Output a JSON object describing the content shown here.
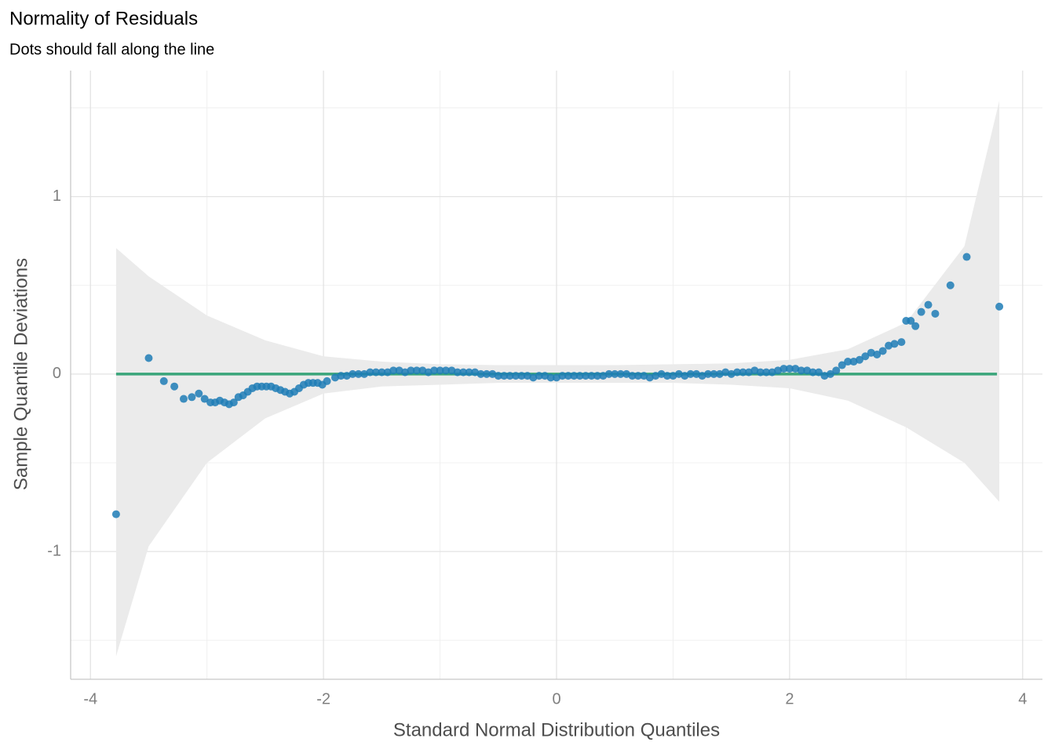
{
  "chart_data": {
    "type": "scatter",
    "title": "Normality of Residuals",
    "subtitle": "Dots should fall along the line",
    "x_label": "Standard Normal Distribution Quantiles",
    "y_label": "Sample Quantile Deviations",
    "xlim": [
      -4.17,
      4.17
    ],
    "ylim": [
      -1.72,
      1.71
    ],
    "xticks": [
      -4,
      -2,
      0,
      2,
      4
    ],
    "yticks": [
      -1,
      0,
      1
    ],
    "x_minor_ticks": [
      -3,
      -1,
      1,
      3
    ],
    "y_minor_ticks": [
      -1.5,
      -0.5,
      0.5,
      1.5
    ],
    "grid": true,
    "band": {
      "color": "#ebebeb",
      "x": [
        -3.78,
        -3.5,
        -3,
        -2.5,
        -2,
        -1.5,
        -1,
        -0.5,
        0,
        0.5,
        1,
        1.5,
        2,
        2.5,
        3,
        3.5,
        3.8
      ],
      "upper": [
        0.71,
        0.55,
        0.33,
        0.19,
        0.1,
        0.07,
        0.055,
        0.05,
        0.05,
        0.05,
        0.055,
        0.06,
        0.08,
        0.14,
        0.29,
        0.72,
        1.54
      ],
      "lower": [
        -1.59,
        -0.97,
        -0.5,
        -0.25,
        -0.11,
        -0.07,
        -0.06,
        -0.05,
        -0.05,
        -0.05,
        -0.05,
        -0.06,
        -0.08,
        -0.15,
        -0.3,
        -0.5,
        -0.72
      ]
    },
    "reference_line": {
      "color": "#3aa57a",
      "x": [
        -3.78,
        3.78
      ],
      "values": [
        0,
        0
      ]
    },
    "series": [
      {
        "color": "#1f7db6",
        "x": [
          -3.78,
          -3.5,
          -3.37,
          -3.28,
          -3.2,
          -3.13,
          -3.07,
          -3.02,
          -2.97,
          -2.93,
          -2.89,
          -2.85,
          -2.81,
          -2.77,
          -2.73,
          -2.69,
          -2.65,
          -2.61,
          -2.57,
          -2.53,
          -2.49,
          -2.45,
          -2.41,
          -2.37,
          -2.33,
          -2.29,
          -2.25,
          -2.21,
          -2.17,
          -2.13,
          -2.09,
          -2.05,
          -2.01,
          -1.97,
          -1.9,
          -1.85,
          -1.8,
          -1.75,
          -1.7,
          -1.65,
          -1.6,
          -1.55,
          -1.5,
          -1.45,
          -1.4,
          -1.35,
          -1.3,
          -1.25,
          -1.2,
          -1.15,
          -1.1,
          -1.05,
          -1,
          -0.95,
          -0.9,
          -0.85,
          -0.8,
          -0.75,
          -0.7,
          -0.65,
          -0.6,
          -0.55,
          -0.5,
          -0.45,
          -0.4,
          -0.35,
          -0.3,
          -0.25,
          -0.2,
          -0.15,
          -0.1,
          -0.05,
          0,
          0.05,
          0.1,
          0.15,
          0.2,
          0.25,
          0.3,
          0.35,
          0.4,
          0.45,
          0.5,
          0.55,
          0.6,
          0.65,
          0.7,
          0.75,
          0.8,
          0.85,
          0.9,
          0.95,
          1,
          1.05,
          1.1,
          1.15,
          1.2,
          1.25,
          1.3,
          1.35,
          1.4,
          1.45,
          1.5,
          1.55,
          1.6,
          1.65,
          1.7,
          1.75,
          1.8,
          1.85,
          1.9,
          1.95,
          2,
          2.05,
          2.1,
          2.15,
          2.2,
          2.25,
          2.3,
          2.35,
          2.4,
          2.45,
          2.5,
          2.55,
          2.6,
          2.65,
          2.7,
          2.75,
          2.8,
          2.85,
          2.9,
          2.96,
          3,
          3.04,
          3.08,
          3.13,
          3.19,
          3.25,
          3.38,
          3.52,
          3.8
        ],
        "values": [
          -0.79,
          0.09,
          -0.04,
          -0.07,
          -0.14,
          -0.13,
          -0.11,
          -0.14,
          -0.16,
          -0.16,
          -0.15,
          -0.16,
          -0.17,
          -0.16,
          -0.13,
          -0.12,
          -0.1,
          -0.08,
          -0.07,
          -0.07,
          -0.07,
          -0.07,
          -0.08,
          -0.09,
          -0.1,
          -0.11,
          -0.1,
          -0.08,
          -0.06,
          -0.05,
          -0.05,
          -0.05,
          -0.06,
          -0.04,
          -0.02,
          -0.01,
          -0.01,
          0,
          0,
          0,
          0.01,
          0.01,
          0.01,
          0.01,
          0.02,
          0.02,
          0.01,
          0.02,
          0.02,
          0.02,
          0.01,
          0.02,
          0.02,
          0.02,
          0.02,
          0.01,
          0.01,
          0.01,
          0.01,
          0,
          0,
          0,
          -0.01,
          -0.01,
          -0.01,
          -0.01,
          -0.01,
          -0.01,
          -0.02,
          -0.01,
          -0.01,
          -0.02,
          -0.02,
          -0.01,
          -0.01,
          -0.01,
          -0.01,
          -0.01,
          -0.01,
          -0.01,
          -0.01,
          0,
          0,
          0,
          0,
          -0.01,
          -0.01,
          -0.01,
          -0.02,
          -0.01,
          0,
          -0.01,
          -0.01,
          0,
          -0.01,
          0,
          0,
          -0.01,
          0,
          0,
          0,
          0.01,
          0,
          0.01,
          0.01,
          0.01,
          0.02,
          0.01,
          0.01,
          0.01,
          0.02,
          0.03,
          0.03,
          0.03,
          0.02,
          0.02,
          0.01,
          0.01,
          -0.01,
          0,
          0.02,
          0.05,
          0.07,
          0.07,
          0.08,
          0.1,
          0.12,
          0.11,
          0.13,
          0.16,
          0.17,
          0.18,
          0.3,
          0.3,
          0.27,
          0.35,
          0.39,
          0.34,
          0.5,
          0.66,
          0.38
        ]
      }
    ]
  }
}
